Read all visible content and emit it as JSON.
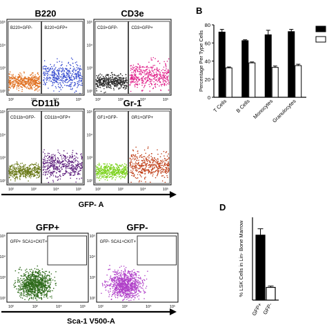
{
  "panels": {
    "B_letter": "B",
    "D_letter": "D"
  },
  "flow_top": {
    "plots": [
      {
        "title": "B220",
        "gate_left": "B220+GFP-",
        "gate_right": "B220+GFP+",
        "left_color": "#e07020",
        "right_color": "#3a4fd0"
      },
      {
        "title": "CD3e",
        "gate_left": "CD3+GFP-",
        "gate_right": "CD3+GFP+",
        "left_color": "#2a2a2a",
        "right_color": "#e0208a"
      },
      {
        "title": "CD11b",
        "gate_left": "CD11b+GFP-",
        "gate_right": "CD11b+GFP+",
        "left_color": "#6b7a1a",
        "right_color": "#5a1a7a"
      },
      {
        "title": "Gr-1",
        "gate_left": "GF1+GFP-",
        "gate_right": "GR1+GFP+",
        "left_color": "#7ed321",
        "right_color": "#c0401a"
      }
    ],
    "x_ticks": [
      "10²",
      "10³",
      "10⁴",
      "10⁵"
    ],
    "y_ticks": [
      "10⁵",
      "10⁴",
      "10³",
      "10²"
    ],
    "axis_label": "GFP- A"
  },
  "flow_bottom": {
    "plots": [
      {
        "title": "GFP+",
        "gate": "GFP+ SCA1+CKIT+",
        "color": "#2d6a1a"
      },
      {
        "title": "GFP-",
        "gate": "GFP- SCA1+CKIT+",
        "color": "#b040c8"
      }
    ],
    "x_ticks": [
      "10²",
      "10³",
      "10⁴",
      "10⁵"
    ],
    "y_ticks": [
      "10⁵",
      "10⁴",
      "10³",
      "10²"
    ],
    "axis_label": "Sca-1 V500-A"
  },
  "chart_data": [
    {
      "type": "bar",
      "panel": "B",
      "ylabel": "Percentage Per Type Cells",
      "ylim": [
        0,
        80
      ],
      "yticks": [
        0,
        20,
        40,
        60,
        80
      ],
      "categories": [
        "T Cells",
        "B Cells",
        "Monocytes",
        "Granulocytes"
      ],
      "series": [
        {
          "values": [
            72,
            62.5,
            69,
            72.5
          ],
          "errors": [
            3,
            1,
            5,
            2.5
          ],
          "fill": "#000000"
        },
        {
          "values": [
            32.5,
            38,
            33,
            35
          ],
          "errors": [
            1,
            1,
            1.5,
            1.5
          ],
          "fill": "#ffffff"
        }
      ],
      "legend_placement": "top-right"
    },
    {
      "type": "bar",
      "panel": "D",
      "ylabel": "% LSK Cells in Lin- Bone Marrow",
      "categories": [
        "GFP+",
        "GFP-"
      ],
      "values": [
        5.1,
        1.0
      ],
      "errors": [
        0.5,
        0.1
      ],
      "fills": [
        "#000000",
        "#ffffff"
      ]
    }
  ]
}
